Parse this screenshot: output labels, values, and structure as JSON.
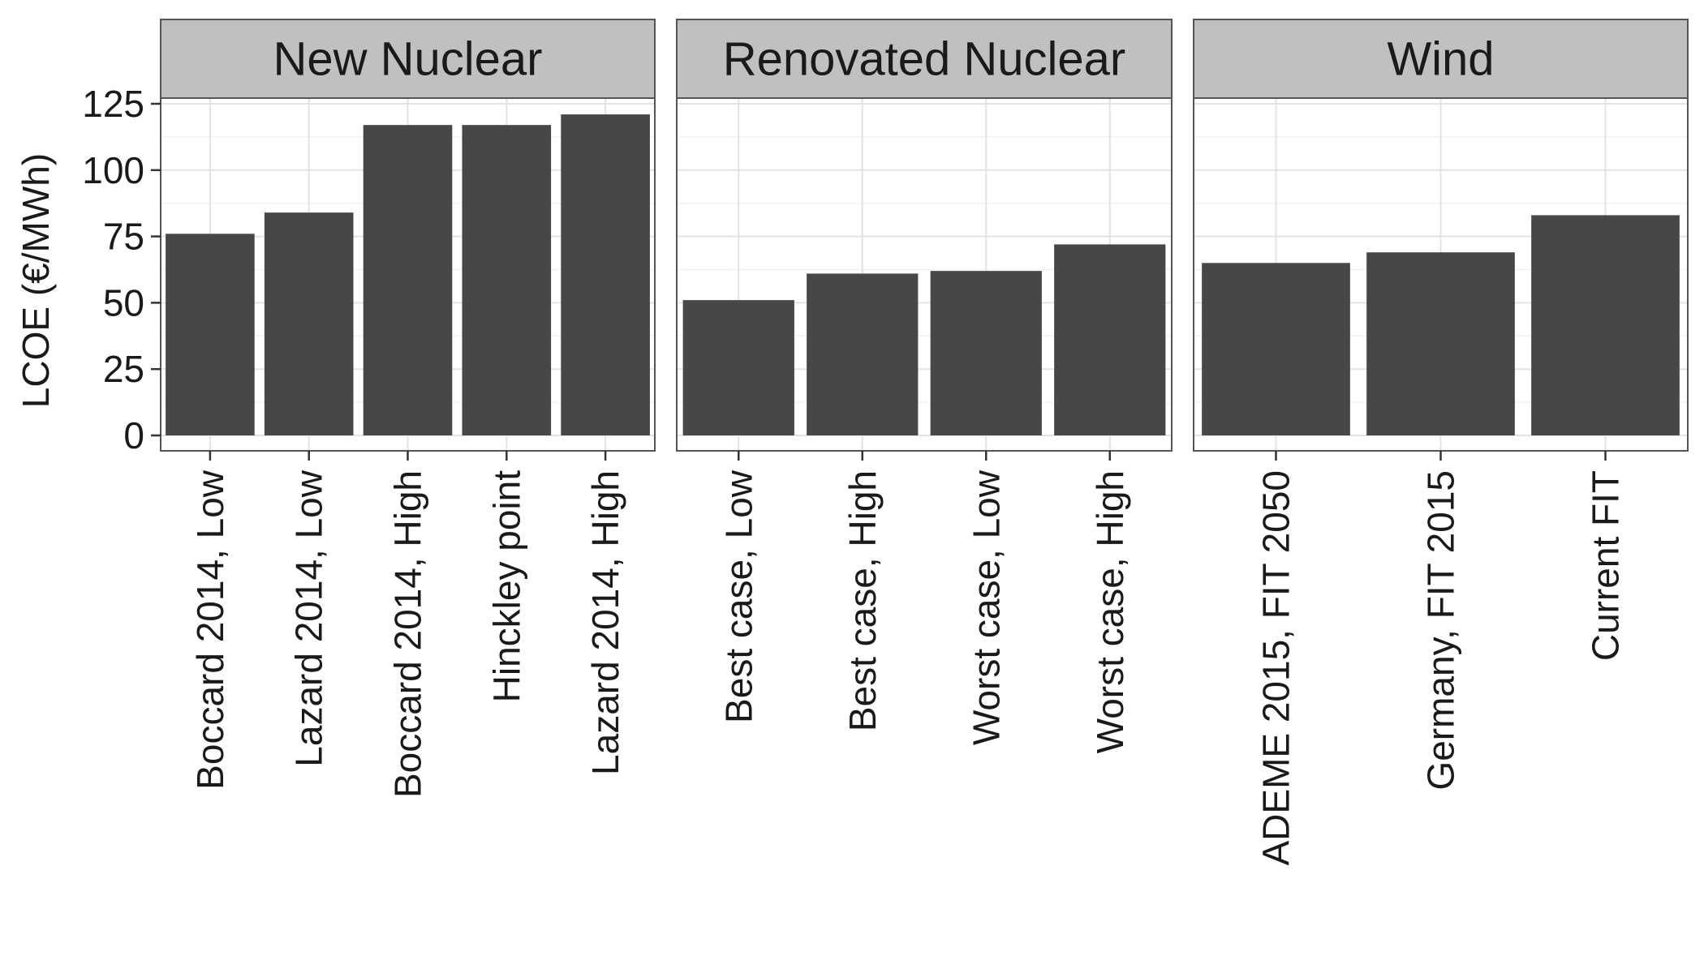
{
  "chart_data": {
    "type": "bar",
    "ylabel": "LCOE (€/MWh)",
    "xlabel": "",
    "ylim": [
      -5,
      126
    ],
    "yticks": [
      0,
      25,
      50,
      75,
      100,
      125
    ],
    "grid": true,
    "bar_color": "#474747",
    "strip_color": "#c0c0c0",
    "panels": [
      {
        "title": "New Nuclear",
        "categories": [
          "Boccard 2014, Low",
          "Lazard 2014, Low",
          "Boccard 2014, High",
          "Hinckley point",
          "Lazard 2014, High"
        ],
        "values": [
          76,
          84,
          117,
          117,
          121
        ]
      },
      {
        "title": "Renovated Nuclear",
        "categories": [
          "Best case, Low",
          "Best case, High",
          "Worst case, Low",
          "Worst case, High"
        ],
        "values": [
          51,
          61,
          62,
          72
        ]
      },
      {
        "title": "Wind",
        "categories": [
          "ADEME 2015, FIT 2050",
          "Germany, FIT 2015",
          "Current FIT"
        ],
        "values": [
          65,
          69,
          83
        ]
      }
    ]
  }
}
